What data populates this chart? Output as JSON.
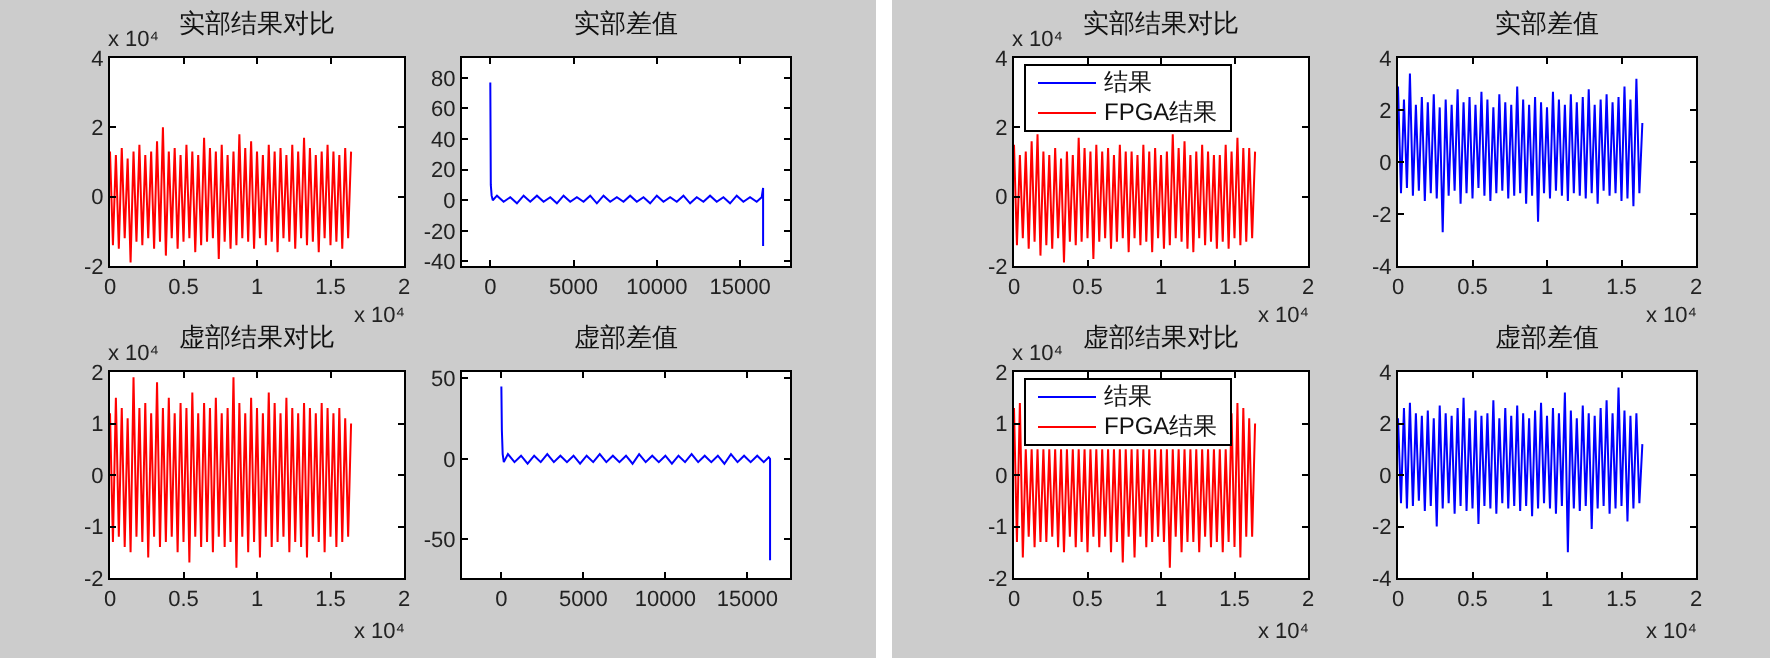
{
  "chart_data": [
    {
      "type": "line",
      "title": "实部结果对比",
      "xlabel": "x 10⁴",
      "ylabel": "x 10⁴",
      "xlim": [
        0,
        2
      ],
      "xticks": [
        0,
        0.5,
        1,
        1.5,
        2
      ],
      "ylim": [
        -2,
        4
      ],
      "yticks": [
        -2,
        0,
        2,
        4
      ],
      "grid": false,
      "legend": false,
      "x": [
        0,
        0.02,
        0.04,
        0.06,
        0.08,
        0.1,
        0.12,
        0.14,
        0.16,
        0.18,
        0.2,
        0.22,
        0.24,
        0.26,
        0.28,
        0.3,
        0.32,
        0.34,
        0.36,
        0.38,
        0.4,
        0.42,
        0.44,
        0.46,
        0.48,
        0.5,
        0.52,
        0.54,
        0.56,
        0.58,
        0.6,
        0.62,
        0.64,
        0.66,
        0.68,
        0.7,
        0.72,
        0.74,
        0.76,
        0.78,
        0.8,
        0.82,
        0.84,
        0.86,
        0.88,
        0.9,
        0.92,
        0.94,
        0.96,
        0.98,
        1,
        1.02,
        1.04,
        1.06,
        1.08,
        1.1,
        1.12,
        1.14,
        1.16,
        1.18,
        1.2,
        1.22,
        1.24,
        1.26,
        1.28,
        1.3,
        1.32,
        1.34,
        1.36,
        1.38,
        1.4,
        1.42,
        1.44,
        1.46,
        1.48,
        1.5,
        1.52,
        1.54,
        1.56,
        1.58,
        1.6,
        1.62,
        1.64
      ],
      "series": [
        {
          "color": "#ff0000",
          "values": [
            1.3,
            -1.4,
            1.2,
            -1.5,
            1.4,
            -1.2,
            1.1,
            -1.9,
            1.3,
            -1.3,
            1.5,
            -1.4,
            1.2,
            -1.2,
            1.3,
            -1.5,
            1.6,
            -1.3,
            2.0,
            -1.7,
            1.3,
            -1.2,
            1.4,
            -1.5,
            1.2,
            -1.3,
            1.5,
            -1.2,
            1.3,
            -1.6,
            1.2,
            -1.4,
            1.7,
            -1.3,
            1.4,
            -1.2,
            1.3,
            -1.8,
            1.5,
            -1.3,
            1.2,
            -1.5,
            1.3,
            -1.4,
            1.8,
            -1.2,
            1.4,
            -1.3,
            1.6,
            -1.5,
            1.3,
            -1.2,
            1.2,
            -1.4,
            1.5,
            -1.3,
            1.3,
            -1.6,
            1.4,
            -1.2,
            1.2,
            -1.3,
            1.5,
            -1.5,
            1.3,
            -1.2,
            1.7,
            -1.4,
            1.4,
            -1.3,
            1.2,
            -1.6,
            1.3,
            -1.2,
            1.5,
            -1.4,
            1.3,
            -1.3,
            1.2,
            -1.5,
            1.4,
            -1.2,
            1.3
          ]
        }
      ]
    },
    {
      "type": "line",
      "title": "实部差值",
      "xlim": [
        -1700,
        18000
      ],
      "xticks": [
        0,
        5000,
        10000,
        15000
      ],
      "ylim": [
        -43,
        93
      ],
      "yticks": [
        -40,
        -20,
        0,
        20,
        40,
        60,
        80
      ],
      "grid": false,
      "legend": false,
      "x": [
        0,
        30,
        80,
        150,
        400,
        800,
        1200,
        1600,
        2000,
        2400,
        2800,
        3200,
        3600,
        4000,
        4400,
        4800,
        5200,
        5600,
        6000,
        6400,
        6800,
        7200,
        7600,
        8000,
        8400,
        8800,
        9200,
        9600,
        10000,
        10400,
        10800,
        11200,
        11600,
        12000,
        12400,
        12800,
        13200,
        13600,
        14000,
        14400,
        14800,
        15200,
        15600,
        16000,
        16300,
        16384,
        16384
      ],
      "series": [
        {
          "color": "#0000ff",
          "values": [
            77,
            10,
            3,
            0,
            3,
            -1,
            2,
            -2,
            3,
            -1,
            3,
            -1,
            2,
            -2,
            3,
            -1,
            2,
            -1,
            3,
            -2,
            3,
            -1,
            2,
            -1,
            3,
            -1,
            2,
            -2,
            3,
            -1,
            2,
            -1,
            3,
            -2,
            2,
            -1,
            3,
            -1,
            2,
            -2,
            3,
            -1,
            2,
            -1,
            2,
            8,
            -30
          ]
        }
      ]
    },
    {
      "type": "line",
      "title": "实部结果对比",
      "xlabel": "x 10⁴",
      "ylabel": "x 10⁴",
      "xlim": [
        0,
        2
      ],
      "xticks": [
        0,
        0.5,
        1,
        1.5,
        2
      ],
      "ylim": [
        -2,
        4
      ],
      "yticks": [
        -2,
        0,
        2,
        4
      ],
      "grid": false,
      "legend": "top left",
      "x": [
        0,
        0.02,
        0.04,
        0.06,
        0.08,
        0.1,
        0.12,
        0.14,
        0.16,
        0.18,
        0.2,
        0.22,
        0.24,
        0.26,
        0.28,
        0.3,
        0.32,
        0.34,
        0.36,
        0.38,
        0.4,
        0.42,
        0.44,
        0.46,
        0.48,
        0.5,
        0.52,
        0.54,
        0.56,
        0.58,
        0.6,
        0.62,
        0.64,
        0.66,
        0.68,
        0.7,
        0.72,
        0.74,
        0.76,
        0.78,
        0.8,
        0.82,
        0.84,
        0.86,
        0.88,
        0.9,
        0.92,
        0.94,
        0.96,
        0.98,
        1,
        1.02,
        1.04,
        1.06,
        1.08,
        1.1,
        1.12,
        1.14,
        1.16,
        1.18,
        1.2,
        1.22,
        1.24,
        1.26,
        1.28,
        1.3,
        1.32,
        1.34,
        1.36,
        1.38,
        1.4,
        1.42,
        1.44,
        1.46,
        1.48,
        1.5,
        1.52,
        1.54,
        1.56,
        1.58,
        1.6,
        1.62,
        1.64
      ],
      "series": [
        {
          "name": "结果",
          "color": "#0000ff",
          "values": [
            null,
            null,
            null,
            null,
            null,
            null,
            null,
            null,
            null,
            null,
            null,
            null,
            null,
            null,
            null,
            null,
            null,
            null,
            null,
            null,
            null,
            null,
            null,
            null,
            null,
            null,
            null,
            null,
            null,
            null,
            null,
            null,
            null,
            null,
            null,
            null,
            null,
            null,
            null,
            null,
            null,
            null,
            null,
            null,
            null,
            null,
            null,
            null,
            null,
            null,
            null,
            null,
            null,
            null,
            null,
            null,
            null,
            null,
            null,
            null,
            null,
            null,
            null,
            null,
            null,
            null,
            null,
            null,
            null,
            null,
            null,
            null,
            null,
            null,
            null,
            null,
            null,
            null,
            null,
            null,
            null,
            null,
            null
          ]
        },
        {
          "name": "FPGA结果",
          "color": "#ff0000",
          "values": [
            1.5,
            -1.4,
            1.2,
            -1.2,
            1.3,
            -1.5,
            1.6,
            -1.3,
            1.8,
            -1.7,
            1.3,
            -1.4,
            1.2,
            -1.5,
            1.4,
            -1.2,
            1.1,
            -1.9,
            1.3,
            -1.3,
            1.2,
            -1.4,
            1.7,
            -1.3,
            1.4,
            -1.2,
            1.3,
            -1.8,
            1.5,
            -1.3,
            1.3,
            -1.2,
            1.4,
            -1.5,
            1.2,
            -1.3,
            1.5,
            -1.2,
            1.3,
            -1.6,
            1.3,
            -1.2,
            1.2,
            -1.4,
            1.5,
            -1.3,
            1.3,
            -1.6,
            1.4,
            -1.2,
            1.2,
            -1.5,
            1.3,
            -1.4,
            1.8,
            -1.2,
            1.4,
            -1.3,
            1.6,
            -1.5,
            1.2,
            -1.6,
            1.3,
            -1.2,
            1.5,
            -1.4,
            1.3,
            -1.3,
            1.2,
            -1.5,
            1.2,
            -1.3,
            1.5,
            -1.5,
            1.3,
            -1.2,
            1.7,
            -1.4,
            1.4,
            -1.3,
            1.4,
            -1.2,
            1.3
          ]
        }
      ]
    },
    {
      "type": "line",
      "title": "实部差值",
      "xlabel": "x 10⁴",
      "xlim": [
        0,
        2
      ],
      "xticks": [
        0,
        0.5,
        1,
        1.5,
        2
      ],
      "ylim": [
        -4,
        4
      ],
      "yticks": [
        -4,
        -2,
        0,
        2,
        4
      ],
      "grid": false,
      "legend": false,
      "x": [
        0,
        0.02,
        0.04,
        0.06,
        0.08,
        0.1,
        0.12,
        0.14,
        0.16,
        0.18,
        0.2,
        0.22,
        0.24,
        0.26,
        0.28,
        0.3,
        0.32,
        0.34,
        0.36,
        0.38,
        0.4,
        0.42,
        0.44,
        0.46,
        0.48,
        0.5,
        0.52,
        0.54,
        0.56,
        0.58,
        0.6,
        0.62,
        0.64,
        0.66,
        0.68,
        0.7,
        0.72,
        0.74,
        0.76,
        0.78,
        0.8,
        0.82,
        0.84,
        0.86,
        0.88,
        0.9,
        0.92,
        0.94,
        0.96,
        0.98,
        1,
        1.02,
        1.04,
        1.06,
        1.08,
        1.1,
        1.12,
        1.14,
        1.16,
        1.18,
        1.2,
        1.22,
        1.24,
        1.26,
        1.28,
        1.3,
        1.32,
        1.34,
        1.36,
        1.38,
        1.4,
        1.42,
        1.44,
        1.46,
        1.48,
        1.5,
        1.52,
        1.54,
        1.56,
        1.58,
        1.6,
        1.62,
        1.64
      ],
      "series": [
        {
          "color": "#0000ff",
          "values": [
            2.9,
            -1.2,
            2.4,
            -1.0,
            3.4,
            -1.3,
            2.2,
            -1.1,
            2.5,
            -1.5,
            2.3,
            -1.2,
            2.6,
            -1.4,
            2.1,
            -2.7,
            2.4,
            -1.3,
            2.2,
            -1.1,
            2.8,
            -1.6,
            2.3,
            -1.2,
            2.5,
            -1.4,
            2.2,
            -1.0,
            2.7,
            -1.3,
            2.4,
            -1.5,
            2.1,
            -1.2,
            2.6,
            -1.1,
            2.3,
            -1.4,
            2.2,
            -1.3,
            2.9,
            -1.2,
            2.4,
            -1.6,
            2.2,
            -1.3,
            2.5,
            -2.3,
            2.3,
            -1.2,
            2.1,
            -1.4,
            2.7,
            -1.1,
            2.4,
            -1.3,
            2.2,
            -1.5,
            2.6,
            -1.2,
            2.3,
            -1.3,
            2.5,
            -1.4,
            2.8,
            -1.2,
            2.2,
            -1.6,
            2.4,
            -1.1,
            2.6,
            -1.3,
            2.3,
            -1.2,
            2.5,
            -1.5,
            2.9,
            -1.4,
            2.4,
            -1.7,
            3.2,
            -1.2,
            1.5
          ]
        }
      ]
    },
    {
      "type": "line",
      "title": "虚部结果对比",
      "xlabel": "x 10⁴",
      "ylabel": "x 10⁴",
      "xlim": [
        0,
        2
      ],
      "xticks": [
        0,
        0.5,
        1,
        1.5,
        2
      ],
      "ylim": [
        -2,
        2
      ],
      "yticks": [
        -2,
        -1,
        0,
        1,
        2
      ],
      "grid": false,
      "legend": false,
      "x": [
        0,
        0.02,
        0.04,
        0.06,
        0.08,
        0.1,
        0.12,
        0.14,
        0.16,
        0.18,
        0.2,
        0.22,
        0.24,
        0.26,
        0.28,
        0.3,
        0.32,
        0.34,
        0.36,
        0.38,
        0.4,
        0.42,
        0.44,
        0.46,
        0.48,
        0.5,
        0.52,
        0.54,
        0.56,
        0.58,
        0.6,
        0.62,
        0.64,
        0.66,
        0.68,
        0.7,
        0.72,
        0.74,
        0.76,
        0.78,
        0.8,
        0.82,
        0.84,
        0.86,
        0.88,
        0.9,
        0.92,
        0.94,
        0.96,
        0.98,
        1,
        1.02,
        1.04,
        1.06,
        1.08,
        1.1,
        1.12,
        1.14,
        1.16,
        1.18,
        1.2,
        1.22,
        1.24,
        1.26,
        1.28,
        1.3,
        1.32,
        1.34,
        1.36,
        1.38,
        1.4,
        1.42,
        1.44,
        1.46,
        1.48,
        1.5,
        1.52,
        1.54,
        1.56,
        1.58,
        1.6,
        1.62,
        1.64
      ],
      "series": [
        {
          "color": "#ff0000",
          "values": [
            1.2,
            -1.3,
            1.5,
            -1.2,
            1.3,
            -1.4,
            1.1,
            -1.5,
            1.9,
            -1.2,
            1.3,
            -1.3,
            1.4,
            -1.6,
            1.2,
            -1.2,
            1.8,
            -1.4,
            1.3,
            -1.3,
            1.5,
            -1.2,
            1.2,
            -1.5,
            1.4,
            -1.3,
            1.3,
            -1.7,
            1.6,
            -1.2,
            1.2,
            -1.4,
            1.4,
            -1.3,
            1.3,
            -1.5,
            1.5,
            -1.2,
            1.2,
            -1.4,
            1.3,
            -1.3,
            1.9,
            -1.8,
            1.4,
            -1.2,
            1.2,
            -1.5,
            1.5,
            -1.3,
            1.3,
            -1.6,
            1.2,
            -1.2,
            1.6,
            -1.4,
            1.4,
            -1.3,
            1.2,
            -1.2,
            1.5,
            -1.5,
            1.3,
            -1.3,
            1.2,
            -1.4,
            1.4,
            -1.6,
            1.3,
            -1.2,
            1.2,
            -1.3,
            1.4,
            -1.5,
            1.3,
            -1.2,
            1.2,
            -1.4,
            1.3,
            -1.3,
            1.1,
            -1.2,
            1.0
          ]
        }
      ]
    },
    {
      "type": "line",
      "title": "虚部差值",
      "xlim": [
        -2400,
        17600
      ],
      "xticks": [
        0,
        5000,
        10000,
        15000
      ],
      "ylim": [
        -74,
        54
      ],
      "yticks": [
        -50,
        0,
        50
      ],
      "grid": false,
      "legend": false,
      "x": [
        0,
        30,
        80,
        150,
        400,
        800,
        1200,
        1600,
        2000,
        2400,
        2800,
        3200,
        3600,
        4000,
        4400,
        4800,
        5200,
        5600,
        6000,
        6400,
        6800,
        7200,
        7600,
        8000,
        8400,
        8800,
        9200,
        9600,
        10000,
        10400,
        10800,
        11200,
        11600,
        12000,
        12400,
        12800,
        13200,
        13600,
        14000,
        14400,
        14800,
        15200,
        15600,
        16000,
        16300,
        16384,
        16384
      ],
      "series": [
        {
          "color": "#0000ff",
          "values": [
            45,
            18,
            3,
            -2,
            3,
            -2,
            2,
            -3,
            2,
            -2,
            3,
            -2,
            2,
            -2,
            2,
            -3,
            2,
            -2,
            3,
            -2,
            2,
            -2,
            2,
            -3,
            3,
            -2,
            2,
            -2,
            2,
            -3,
            2,
            -2,
            3,
            -2,
            2,
            -2,
            2,
            -3,
            3,
            -2,
            2,
            -2,
            2,
            -2,
            1,
            0,
            -63
          ]
        }
      ]
    },
    {
      "type": "line",
      "title": "虚部结果对比",
      "xlabel": "x 10⁴",
      "ylabel": "x 10⁴",
      "xlim": [
        0,
        2
      ],
      "xticks": [
        0,
        0.5,
        1,
        1.5,
        2
      ],
      "ylim": [
        -2,
        2
      ],
      "yticks": [
        -2,
        -1,
        0,
        1,
        2
      ],
      "grid": false,
      "legend": "top left",
      "x": [
        0,
        0.02,
        0.04,
        0.06,
        0.08,
        0.1,
        0.12,
        0.14,
        0.16,
        0.18,
        0.2,
        0.22,
        0.24,
        0.26,
        0.28,
        0.3,
        0.32,
        0.34,
        0.36,
        0.38,
        0.4,
        0.42,
        0.44,
        0.46,
        0.48,
        0.5,
        0.52,
        0.54,
        0.56,
        0.58,
        0.6,
        0.62,
        0.64,
        0.66,
        0.68,
        0.7,
        0.72,
        0.74,
        0.76,
        0.78,
        0.8,
        0.82,
        0.84,
        0.86,
        0.88,
        0.9,
        0.92,
        0.94,
        0.96,
        0.98,
        1,
        1.02,
        1.04,
        1.06,
        1.08,
        1.1,
        1.12,
        1.14,
        1.16,
        1.18,
        1.2,
        1.22,
        1.24,
        1.26,
        1.28,
        1.3,
        1.32,
        1.34,
        1.36,
        1.38,
        1.4,
        1.42,
        1.44,
        1.46,
        1.48,
        1.5,
        1.52,
        1.54,
        1.56,
        1.58,
        1.6,
        1.62,
        1.64
      ],
      "series": [
        {
          "name": "结果",
          "color": "#0000ff",
          "values": [
            null,
            null,
            null,
            null,
            null,
            null,
            null,
            null,
            null,
            null,
            null,
            null,
            null,
            null,
            null,
            null,
            null,
            null,
            null,
            null,
            null,
            null,
            null,
            null,
            null,
            null,
            null,
            null,
            null,
            null,
            null,
            null,
            null,
            null,
            null,
            null,
            null,
            null,
            null,
            null,
            null,
            null,
            null,
            null,
            null,
            null,
            null,
            null,
            null,
            null,
            null,
            null,
            null,
            null,
            null,
            null,
            null,
            null,
            null,
            null,
            null,
            null,
            null,
            null,
            null,
            null,
            null,
            null,
            null,
            null,
            null,
            null,
            null,
            null,
            null,
            null,
            null,
            null,
            null,
            null,
            null,
            null,
            null
          ]
        },
        {
          "name": "FPGA结果",
          "color": "#ff0000",
          "values": [
            1.3,
            -1.3,
            1.4,
            -1.6,
            0.5,
            -1.2,
            0.5,
            -1.4,
            0.5,
            -1.3,
            0.5,
            -1.3,
            0.5,
            -1.2,
            0.5,
            -1.4,
            0.5,
            -1.5,
            0.5,
            -1.2,
            0.5,
            -1.4,
            0.5,
            -1.3,
            0.5,
            -1.5,
            0.5,
            -1.2,
            0.5,
            -1.4,
            0.5,
            -1.2,
            0.5,
            -1.5,
            0.5,
            -1.3,
            0.5,
            -1.7,
            0.5,
            -1.2,
            0.5,
            -1.6,
            0.5,
            -1.2,
            0.5,
            -1.4,
            0.5,
            -1.3,
            0.5,
            -1.2,
            0.5,
            -1.3,
            0.5,
            -1.8,
            0.5,
            -1.2,
            0.5,
            -1.5,
            0.5,
            -1.3,
            0.5,
            -1.3,
            0.5,
            -1.5,
            0.5,
            -1.2,
            0.5,
            -1.4,
            0.5,
            -1.3,
            0.5,
            -1.5,
            0.5,
            -1.3,
            1.2,
            -1.4,
            1.4,
            -1.6,
            1.3,
            -1.2,
            1.1,
            -1.2,
            1.0
          ]
        }
      ]
    },
    {
      "type": "line",
      "title": "虚部差值",
      "xlabel": "x 10⁴",
      "xlim": [
        0,
        2
      ],
      "xticks": [
        0,
        0.5,
        1,
        1.5,
        2
      ],
      "ylim": [
        -4,
        4
      ],
      "yticks": [
        -4,
        -2,
        0,
        2,
        4
      ],
      "grid": false,
      "legend": false,
      "x": [
        0,
        0.02,
        0.04,
        0.06,
        0.08,
        0.1,
        0.12,
        0.14,
        0.16,
        0.18,
        0.2,
        0.22,
        0.24,
        0.26,
        0.28,
        0.3,
        0.32,
        0.34,
        0.36,
        0.38,
        0.4,
        0.42,
        0.44,
        0.46,
        0.48,
        0.5,
        0.52,
        0.54,
        0.56,
        0.58,
        0.6,
        0.62,
        0.64,
        0.66,
        0.68,
        0.7,
        0.72,
        0.74,
        0.76,
        0.78,
        0.8,
        0.82,
        0.84,
        0.86,
        0.88,
        0.9,
        0.92,
        0.94,
        0.96,
        0.98,
        1,
        1.02,
        1.04,
        1.06,
        1.08,
        1.1,
        1.12,
        1.14,
        1.16,
        1.18,
        1.2,
        1.22,
        1.24,
        1.26,
        1.28,
        1.3,
        1.32,
        1.34,
        1.36,
        1.38,
        1.4,
        1.42,
        1.44,
        1.46,
        1.48,
        1.5,
        1.52,
        1.54,
        1.56,
        1.58,
        1.6,
        1.62,
        1.64
      ],
      "series": [
        {
          "color": "#0000ff",
          "values": [
            2.2,
            -1.1,
            2.6,
            -1.3,
            2.8,
            -1.2,
            2.4,
            -1.0,
            2.3,
            -1.4,
            2.5,
            -1.2,
            2.2,
            -2.0,
            2.7,
            -1.3,
            2.4,
            -1.1,
            2.3,
            -1.5,
            2.6,
            -1.2,
            3.0,
            -1.4,
            2.2,
            -1.3,
            2.5,
            -1.9,
            2.3,
            -1.2,
            2.4,
            -1.3,
            2.9,
            -1.5,
            2.2,
            -1.1,
            2.6,
            -1.3,
            2.3,
            -1.2,
            2.7,
            -1.4,
            2.4,
            -1.2,
            2.2,
            -1.6,
            2.5,
            -1.3,
            2.8,
            -1.1,
            2.3,
            -1.3,
            2.6,
            -1.5,
            2.4,
            -1.2,
            3.2,
            -3.0,
            2.5,
            -1.3,
            2.2,
            -1.4,
            2.7,
            -1.2,
            2.4,
            -2.1,
            2.3,
            -1.3,
            2.6,
            -1.2,
            2.9,
            -1.5,
            2.4,
            -1.3,
            3.4,
            -1.2,
            2.5,
            -1.8,
            2.3,
            -1.3,
            2.4,
            -1.1,
            1.2
          ]
        }
      ]
    }
  ]
}
